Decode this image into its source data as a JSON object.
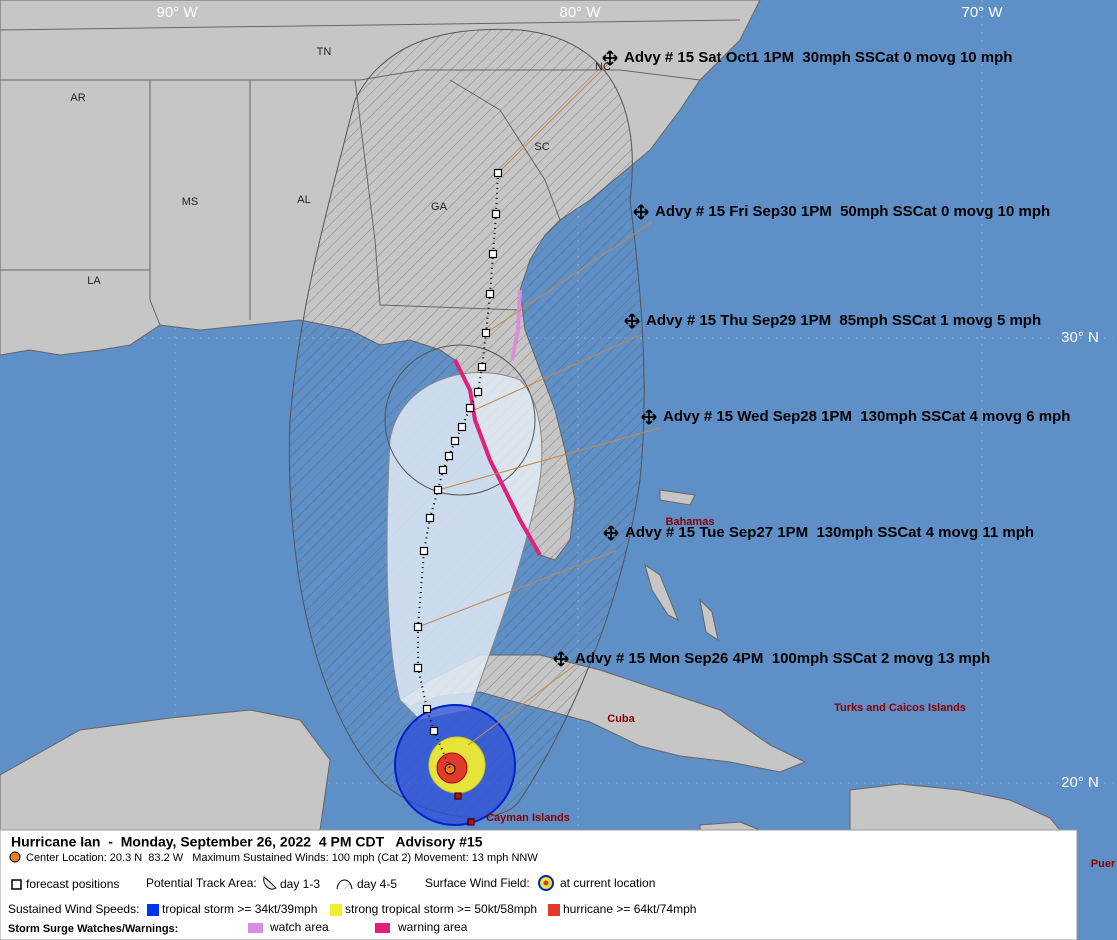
{
  "map": {
    "grid_labels": {
      "longitude": [
        "90° W",
        "80° W",
        "70° W"
      ],
      "latitude": [
        "30° N",
        "20° N"
      ]
    },
    "state_labels": [
      "AR",
      "TN",
      "NC",
      "SC",
      "MS",
      "AL",
      "GA",
      "LA"
    ],
    "place_labels": [
      "Bahamas",
      "Cuba",
      "Turks and Caicos Islands",
      "Cayman Islands",
      "Puer"
    ],
    "advisories": [
      "Advy # 15 Sat Oct1 1PM  30mph SSCat 0 movg 10 mph",
      "Advy # 15 Fri Sep30 1PM  50mph SSCat 0 movg 10 mph",
      "Advy # 15 Thu Sep29 1PM  85mph SSCat 1 movg 5 mph",
      "Advy # 15 Wed Sep28 1PM  130mph SSCat 4 movg 6 mph",
      "Advy # 15 Tue Sep27 1PM  130mph SSCat 4 movg 11 mph",
      "Advy # 15 Mon Sep26 4PM  100mph SSCat 2 movg 13 mph"
    ]
  },
  "legend": {
    "title": "Hurricane Ian  -  Monday, September 26, 2022  4 PM CDT   Advisory #15",
    "center_location": "Center Location: 20.3 N  83.2 W   Maximum Sustained Winds: 100 mph (Cat 2) Movement: 13 mph NNW",
    "forecast_positions": "forecast positions",
    "potential_track_area": {
      "label": "Potential Track Area:",
      "day_1_3": "day 1-3",
      "day_4_5": "day 4-5"
    },
    "surface_wind_field": {
      "label": "Surface Wind Field:",
      "current": "at current location"
    },
    "wind_speeds": {
      "label": "Sustained Wind Speeds:",
      "tropical_storm": "tropical storm >= 34kt/39mph",
      "strong_tropical_storm": "strong tropical storm >= 50kt/58mph",
      "hurricane": "hurricane >= 64kt/74mph"
    },
    "storm_surge": {
      "label": "Storm Surge Watches/Warnings:",
      "watch": "watch area",
      "warning": "warning area"
    }
  }
}
